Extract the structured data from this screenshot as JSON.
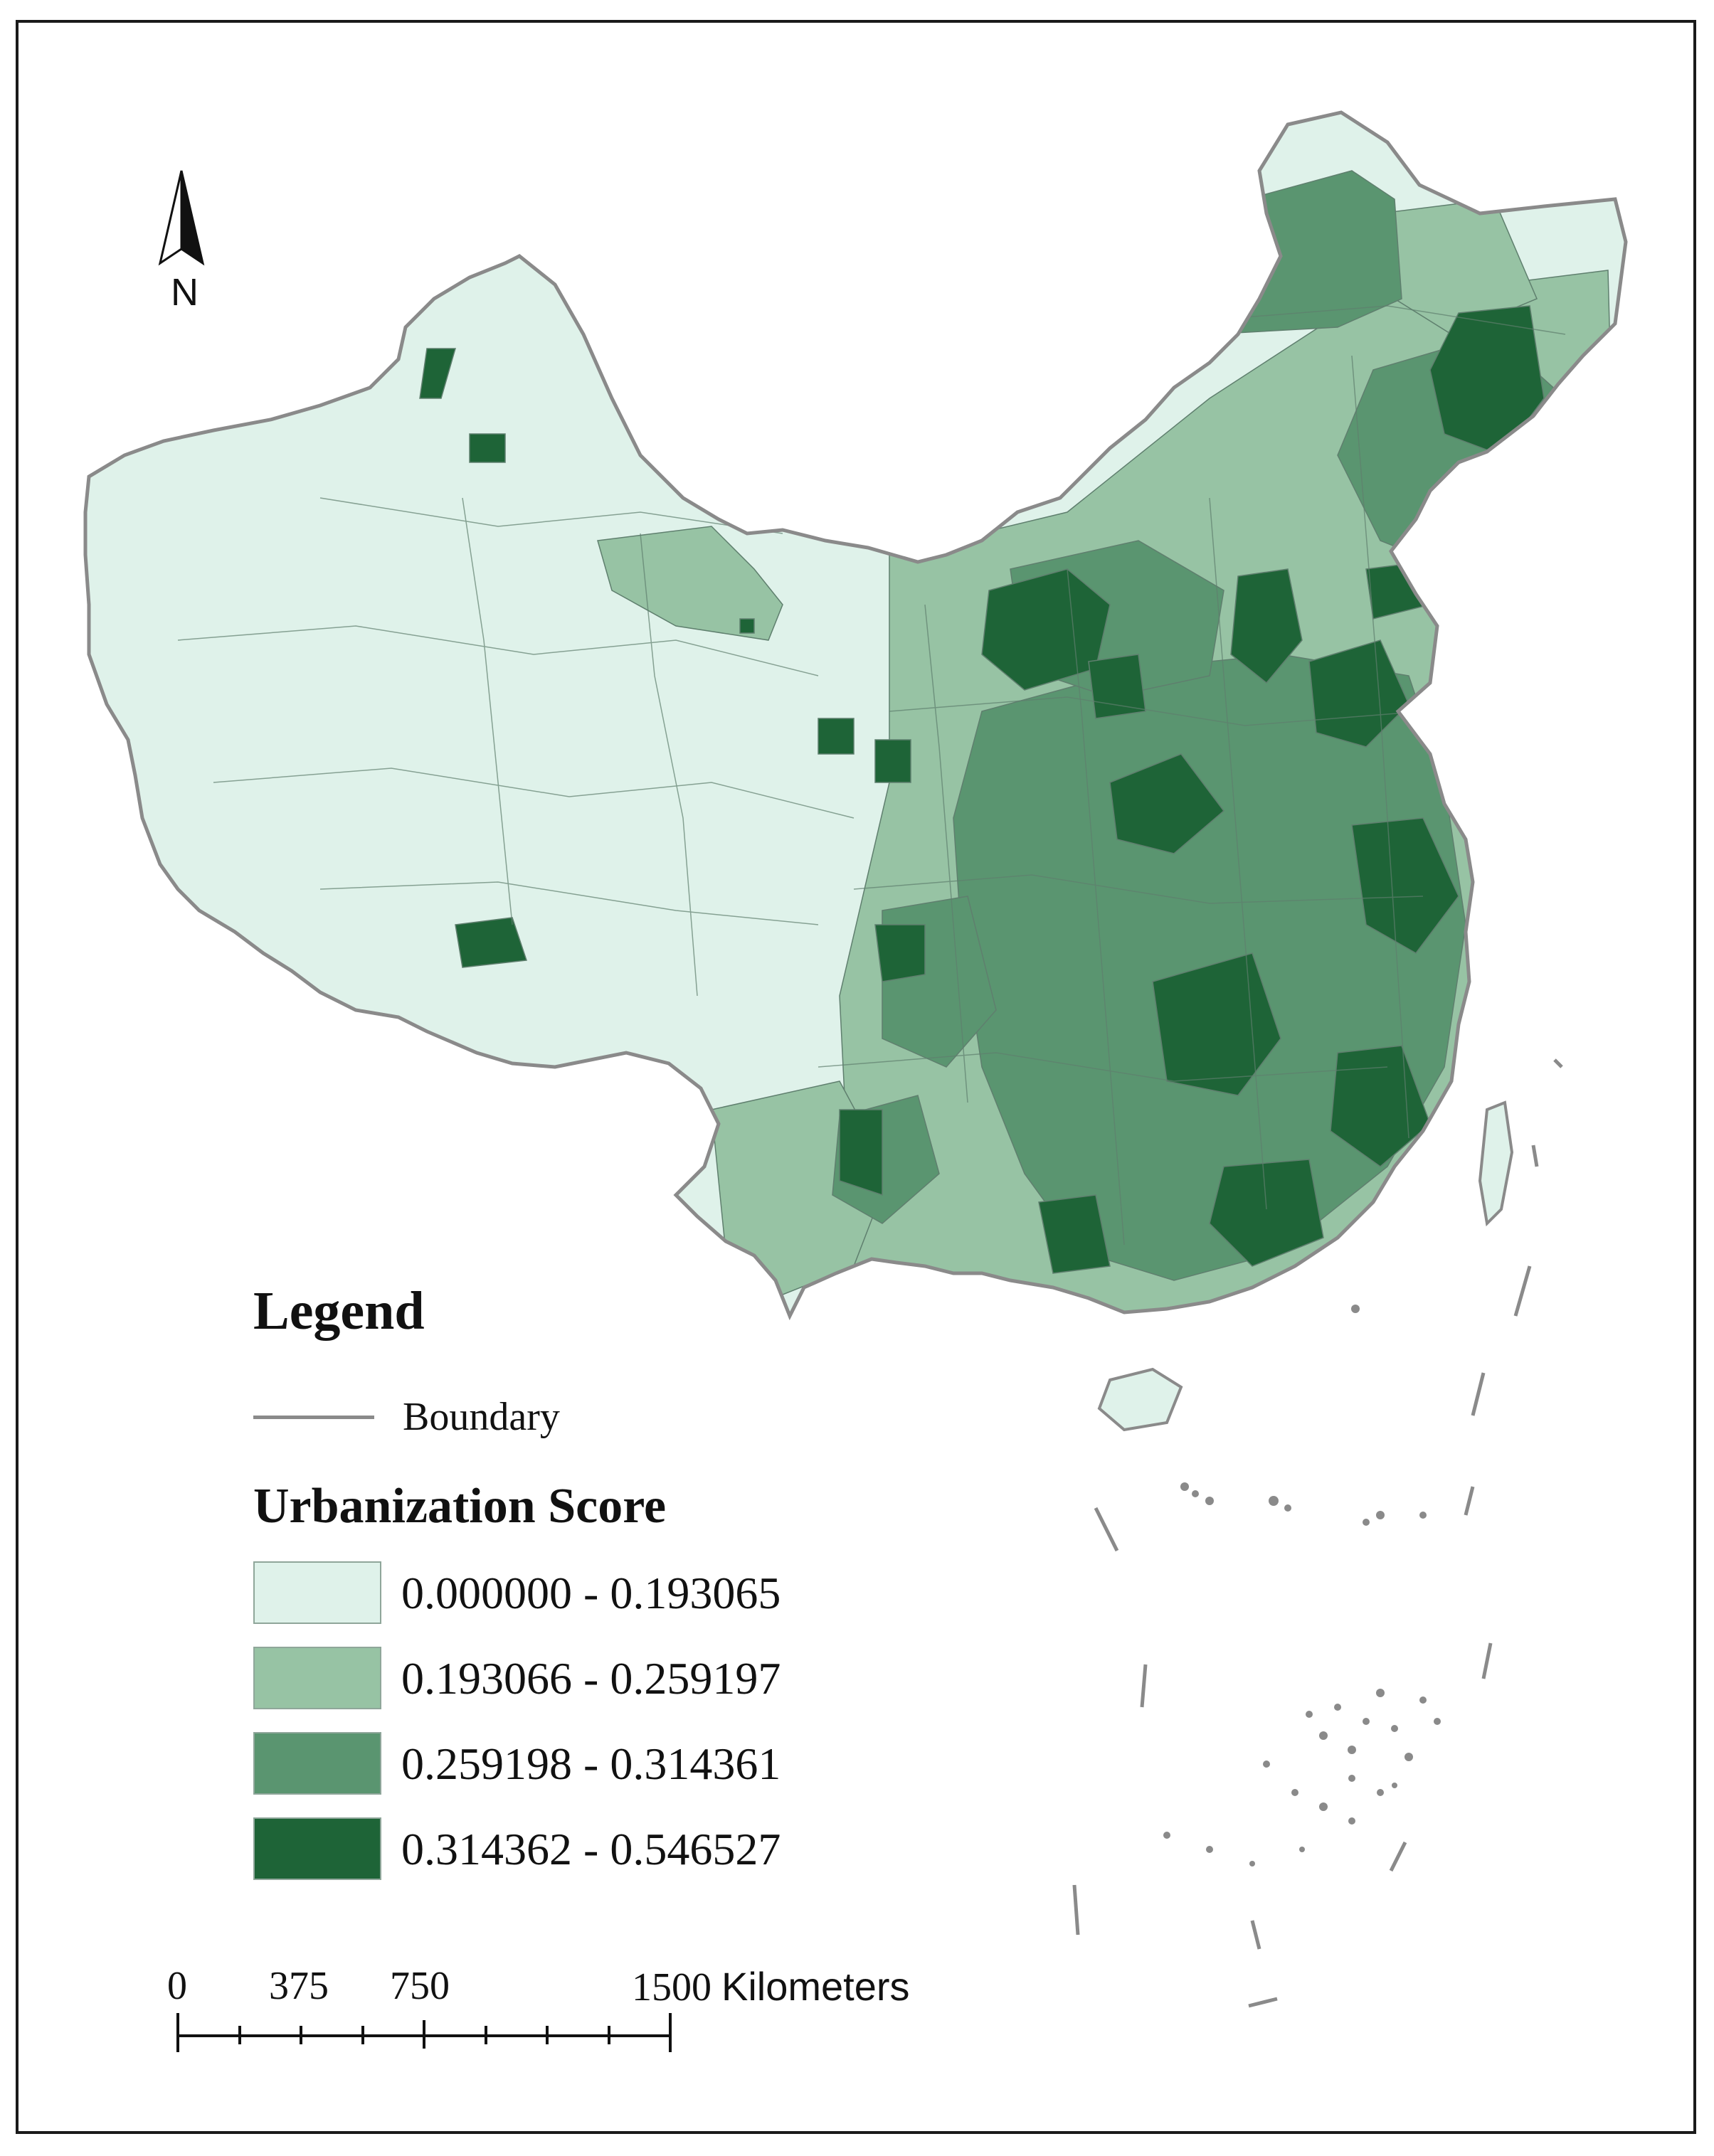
{
  "legend": {
    "title": "Legend",
    "boundary_label": "Boundary",
    "score_title": "Urbanization Score",
    "classes": [
      {
        "range": "0.000000  -  0.193065",
        "color": "#dff2ea"
      },
      {
        "range": "0.193066  -  0.259197",
        "color": "#97c3a4"
      },
      {
        "range": "0.259198  -  0.314361",
        "color": "#5a9570"
      },
      {
        "range": "0.314362  -  0.546527",
        "color": "#1e6437"
      }
    ]
  },
  "north_arrow": {
    "label": "N"
  },
  "scale_bar": {
    "labels": [
      "0",
      "375",
      "750",
      "1500 Kilometers"
    ]
  },
  "colors": {
    "boundary": "#8a8a8a",
    "internal_lines": "#5f7f6e",
    "frame": "#1a1a1a"
  }
}
